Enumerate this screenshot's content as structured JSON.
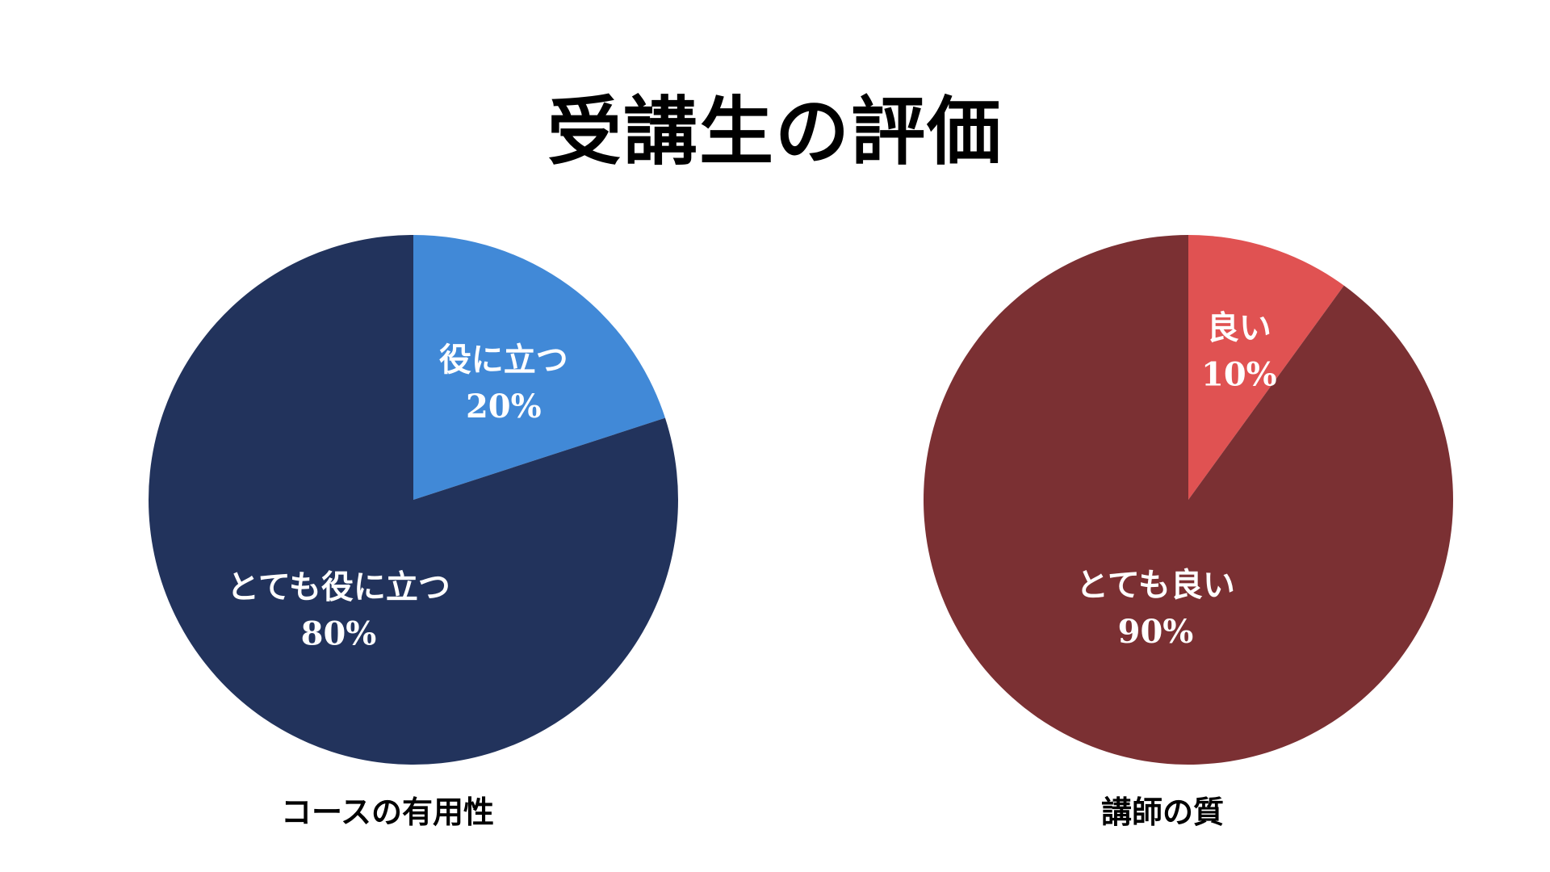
{
  "title": "受講生の評価",
  "chart_data": [
    {
      "type": "pie",
      "caption": "コースの有用性",
      "slices": [
        {
          "label": "役に立つ",
          "value": 20,
          "value_label": "20%",
          "color": "#4189D7"
        },
        {
          "label": "とても役に立つ",
          "value": 80,
          "value_label": "80%",
          "color": "#22335C"
        }
      ]
    },
    {
      "type": "pie",
      "caption": "講師の質",
      "slices": [
        {
          "label": "良い",
          "value": 10,
          "value_label": "10%",
          "color": "#E05252"
        },
        {
          "label": "とても良い",
          "value": 90,
          "value_label": "90%",
          "color": "#7B3033"
        }
      ]
    }
  ]
}
